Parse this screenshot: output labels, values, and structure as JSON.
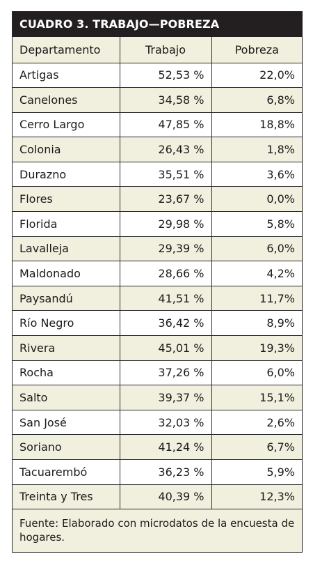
{
  "title": "CUADRO 3. TRABAJO—POBREZA",
  "headers": [
    "Departamento",
    "Trabajo",
    "Pobreza"
  ],
  "rows": [
    [
      "Artigas",
      "52,53 %",
      "22,0%"
    ],
    [
      "Canelones",
      "34,58 %",
      "6,8%"
    ],
    [
      "Cerro Largo",
      "47,85 %",
      "18,8%"
    ],
    [
      "Colonia",
      "26,43 %",
      "1,8%"
    ],
    [
      "Durazno",
      "35,51 %",
      "3,6%"
    ],
    [
      "Flores",
      "23,67 %",
      "0,0%"
    ],
    [
      "Florida",
      "29,98 %",
      "5,8%"
    ],
    [
      "Lavalleja",
      "29,39 %",
      "6,0%"
    ],
    [
      "Maldonado",
      "28,66 %",
      "4,2%"
    ],
    [
      "Paysandú",
      "41,51 %",
      "11,7%"
    ],
    [
      "Río Negro",
      "36,42 %",
      "8,9%"
    ],
    [
      "Rivera",
      "45,01 %",
      "19,3%"
    ],
    [
      "Rocha",
      "37,26 %",
      "6,0%"
    ],
    [
      "Salto",
      "39,37 %",
      "15,1%"
    ],
    [
      "San José",
      "32,03 %",
      "2,6%"
    ],
    [
      "Soriano",
      "41,24 %",
      "6,7%"
    ],
    [
      "Tacuarembó",
      "36,23 %",
      "5,9%"
    ],
    [
      "Treinta y Tres",
      "40,39 %",
      "12,3%"
    ]
  ],
  "source": "Fuente: Elaborado con microdatos de la encuesta de hogares.",
  "colors": {
    "title_bg": "#231f20",
    "row_alt_bg": "#f1efdd",
    "border": "#2a2a2a"
  }
}
